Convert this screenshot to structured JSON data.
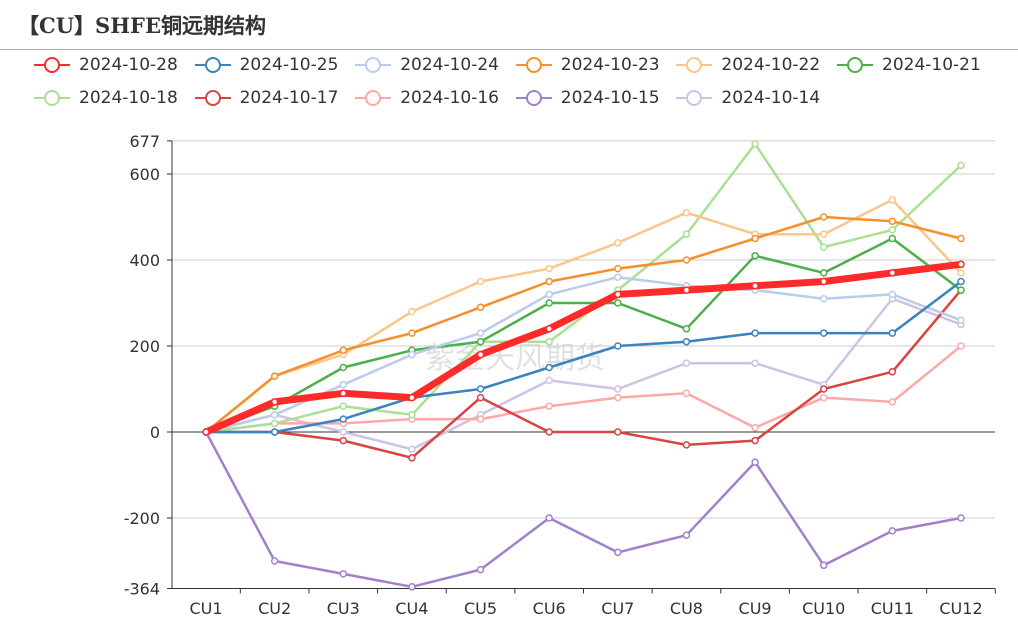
{
  "title": "【CU】SHFE铜远期结构",
  "watermark": "紫金天风期货",
  "chart_data": {
    "type": "line",
    "title": "【CU】SHFE铜远期结构",
    "categories": [
      "CU1",
      "CU2",
      "CU3",
      "CU4",
      "CU5",
      "CU6",
      "CU7",
      "CU8",
      "CU9",
      "CU10",
      "CU11",
      "CU12"
    ],
    "ylim": [
      -364,
      677
    ],
    "yticks": [
      -364,
      -200,
      0,
      200,
      400,
      600,
      677
    ],
    "grid": true,
    "legend": "top",
    "series": [
      {
        "name": "2024-10-28",
        "color": "#ff2a2a",
        "width": 7,
        "values": [
          0,
          70,
          90,
          80,
          180,
          240,
          320,
          330,
          340,
          350,
          370,
          390
        ]
      },
      {
        "name": "2024-10-25",
        "color": "#3a82c0",
        "width": 2.5,
        "values": [
          0,
          0,
          30,
          80,
          100,
          150,
          200,
          210,
          230,
          230,
          230,
          350
        ]
      },
      {
        "name": "2024-10-24",
        "color": "#b9cdea",
        "width": 2.5,
        "values": [
          0,
          40,
          110,
          180,
          230,
          320,
          360,
          340,
          330,
          310,
          320,
          260
        ]
      },
      {
        "name": "2024-10-23",
        "color": "#f5902a",
        "width": 2.5,
        "values": [
          0,
          130,
          190,
          230,
          290,
          350,
          380,
          400,
          450,
          500,
          490,
          450
        ]
      },
      {
        "name": "2024-10-22",
        "color": "#fcc68a",
        "width": 2.5,
        "values": [
          0,
          130,
          180,
          280,
          350,
          380,
          440,
          510,
          460,
          460,
          540,
          370
        ]
      },
      {
        "name": "2024-10-21",
        "color": "#4caf4a",
        "width": 2.5,
        "values": [
          0,
          60,
          150,
          190,
          210,
          300,
          300,
          240,
          410,
          370,
          450,
          330
        ]
      },
      {
        "name": "2024-10-18",
        "color": "#a9e092",
        "width": 2.5,
        "values": [
          0,
          20,
          60,
          40,
          210,
          210,
          330,
          460,
          670,
          430,
          470,
          620
        ]
      },
      {
        "name": "2024-10-17",
        "color": "#d84444",
        "width": 2.5,
        "values": [
          0,
          0,
          -20,
          -60,
          80,
          0,
          0,
          -30,
          -20,
          100,
          140,
          330
        ]
      },
      {
        "name": "2024-10-16",
        "color": "#ffa8a8",
        "width": 2.5,
        "values": [
          0,
          20,
          20,
          30,
          30,
          60,
          80,
          90,
          10,
          80,
          70,
          200
        ]
      },
      {
        "name": "2024-10-15",
        "color": "#a182c9",
        "width": 2.5,
        "values": [
          0,
          -300,
          -330,
          -360,
          -320,
          -200,
          -280,
          -240,
          -70,
          -310,
          -230,
          -200
        ]
      },
      {
        "name": "2024-10-14",
        "color": "#d2c2e2",
        "width": 2.5,
        "values": [
          0,
          40,
          0,
          -40,
          40,
          120,
          100,
          160,
          160,
          110,
          310,
          250
        ]
      }
    ]
  }
}
